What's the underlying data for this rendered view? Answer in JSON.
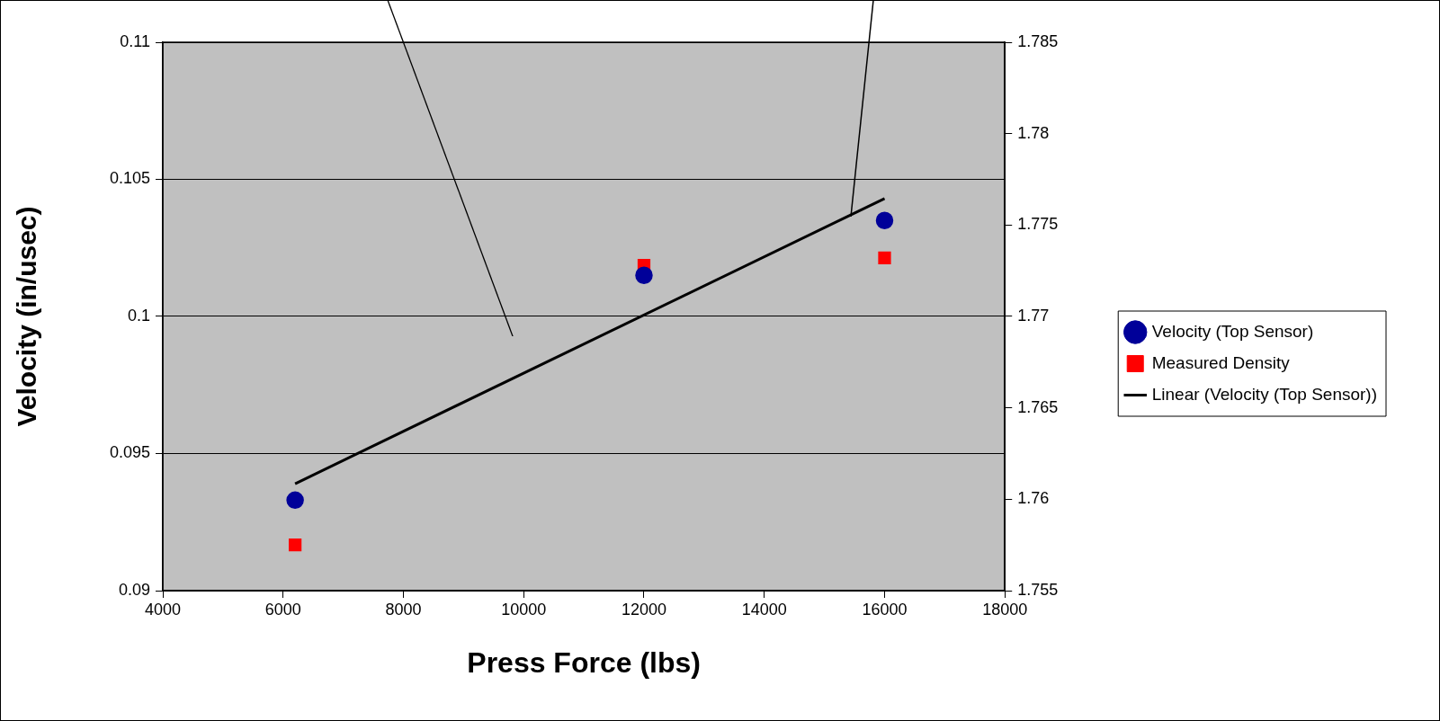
{
  "chart_data": {
    "type": "scatter",
    "xlabel": "Press Force (lbs)",
    "ylabel": "Velocity (in/usec)",
    "xlim": [
      4000,
      18000
    ],
    "xticks": [
      4000,
      6000,
      8000,
      10000,
      12000,
      14000,
      16000,
      18000
    ],
    "ylim": [
      0.09,
      0.11
    ],
    "yticks": [
      0.09,
      0.095,
      0.1,
      0.105,
      0.11
    ],
    "y2lim": [
      1.755,
      1.785
    ],
    "y2ticks": [
      1.755,
      1.76,
      1.765,
      1.77,
      1.775,
      1.78,
      1.785
    ],
    "grid": "y",
    "legend": "right",
    "series": [
      {
        "name": "Velocity (Top Sensor)",
        "type": "scatter",
        "marker": "circle",
        "color": "#000099",
        "x": [
          6200,
          12000,
          16000
        ],
        "values": [
          0.0933,
          0.1015,
          0.1035
        ]
      },
      {
        "name": "Measured Density",
        "type": "scatter",
        "marker": "square",
        "color": "#ff0000",
        "axis": "y2",
        "x": [
          6200,
          12000,
          16000
        ],
        "values": [
          1.7575,
          1.7728,
          1.7732
        ]
      },
      {
        "name": "Linear (Velocity (Top Sensor))",
        "type": "line",
        "marker": "none",
        "line_style": "solid",
        "color": "#000000",
        "x": [
          6200,
          16000
        ],
        "values": [
          0.0939,
          0.1043
        ]
      }
    ]
  }
}
